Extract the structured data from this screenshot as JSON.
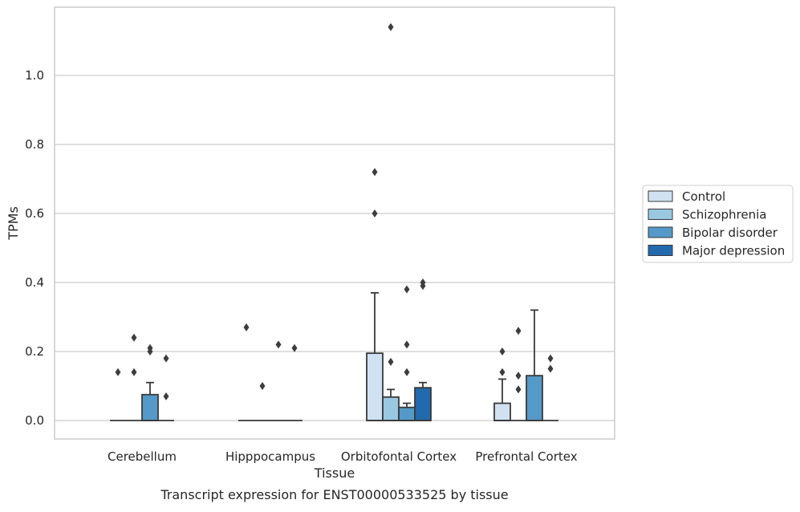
{
  "chart_data": {
    "type": "box",
    "xlabel": "Tissue",
    "ylabel": "TPMs",
    "caption": "Transcript expression for ENST00000533525 by tissue",
    "ylim": [
      -0.055,
      1.2
    ],
    "yticks": [
      "0.0",
      "0.2",
      "0.4",
      "0.6",
      "0.8",
      "1.0"
    ],
    "grid": true,
    "legend_position": "right, outside plot",
    "categories": [
      "Cerebellum",
      "Hipppocampus",
      "Orbitofontal Cortex",
      "Prefrontal Cortex"
    ],
    "series": [
      {
        "name": "Control",
        "color": "#d0e1f2",
        "boxes": [
          {
            "q1": 0,
            "median": 0,
            "q3": 0,
            "whisker_high": 0,
            "outliers": [
              0.14
            ]
          },
          {
            "q1": 0,
            "median": 0,
            "q3": 0,
            "whisker_high": 0,
            "outliers": [
              0.27
            ]
          },
          {
            "q1": 0,
            "median": 0,
            "q3": 0.195,
            "whisker_high": 0.37,
            "outliers": [
              0.6,
              0.72
            ]
          },
          {
            "q1": 0,
            "median": 0,
            "q3": 0.05,
            "whisker_high": 0.12,
            "outliers": [
              0.14,
              0.2
            ]
          }
        ]
      },
      {
        "name": "Schizophrenia",
        "color": "#9ac8e0",
        "boxes": [
          {
            "q1": 0,
            "median": 0,
            "q3": 0,
            "whisker_high": 0,
            "outliers": [
              0.14,
              0.24
            ]
          },
          {
            "q1": 0,
            "median": 0,
            "q3": 0,
            "whisker_high": 0,
            "outliers": [
              0.1
            ]
          },
          {
            "q1": 0,
            "median": 0,
            "q3": 0.068,
            "whisker_high": 0.09,
            "outliers": [
              0.17,
              1.14
            ]
          },
          {
            "q1": 0,
            "median": 0,
            "q3": 0,
            "whisker_high": 0,
            "outliers": [
              0.09,
              0.13,
              0.26
            ]
          }
        ]
      },
      {
        "name": "Bipolar disorder",
        "color": "#5499c7",
        "boxes": [
          {
            "q1": 0,
            "median": 0,
            "q3": 0.075,
            "whisker_high": 0.11,
            "outliers": [
              0.2,
              0.21
            ]
          },
          {
            "q1": 0,
            "median": 0,
            "q3": 0,
            "whisker_high": 0,
            "outliers": [
              0.22
            ]
          },
          {
            "q1": 0,
            "median": 0,
            "q3": 0.038,
            "whisker_high": 0.05,
            "outliers": [
              0.14,
              0.22,
              0.38
            ]
          },
          {
            "q1": 0,
            "median": 0,
            "q3": 0.13,
            "whisker_high": 0.32,
            "outliers": []
          }
        ]
      },
      {
        "name": "Major depression",
        "color": "#2369ad",
        "boxes": [
          {
            "q1": 0,
            "median": 0,
            "q3": 0,
            "whisker_high": 0,
            "outliers": [
              0.07,
              0.18
            ]
          },
          {
            "q1": 0,
            "median": 0,
            "q3": 0,
            "whisker_high": 0,
            "outliers": [
              0.21
            ]
          },
          {
            "q1": 0,
            "median": 0,
            "q3": 0.095,
            "whisker_high": 0.11,
            "outliers": [
              0.39,
              0.4
            ]
          },
          {
            "q1": 0,
            "median": 0,
            "q3": 0,
            "whisker_high": 0,
            "outliers": [
              0.15,
              0.18
            ]
          }
        ]
      }
    ]
  }
}
